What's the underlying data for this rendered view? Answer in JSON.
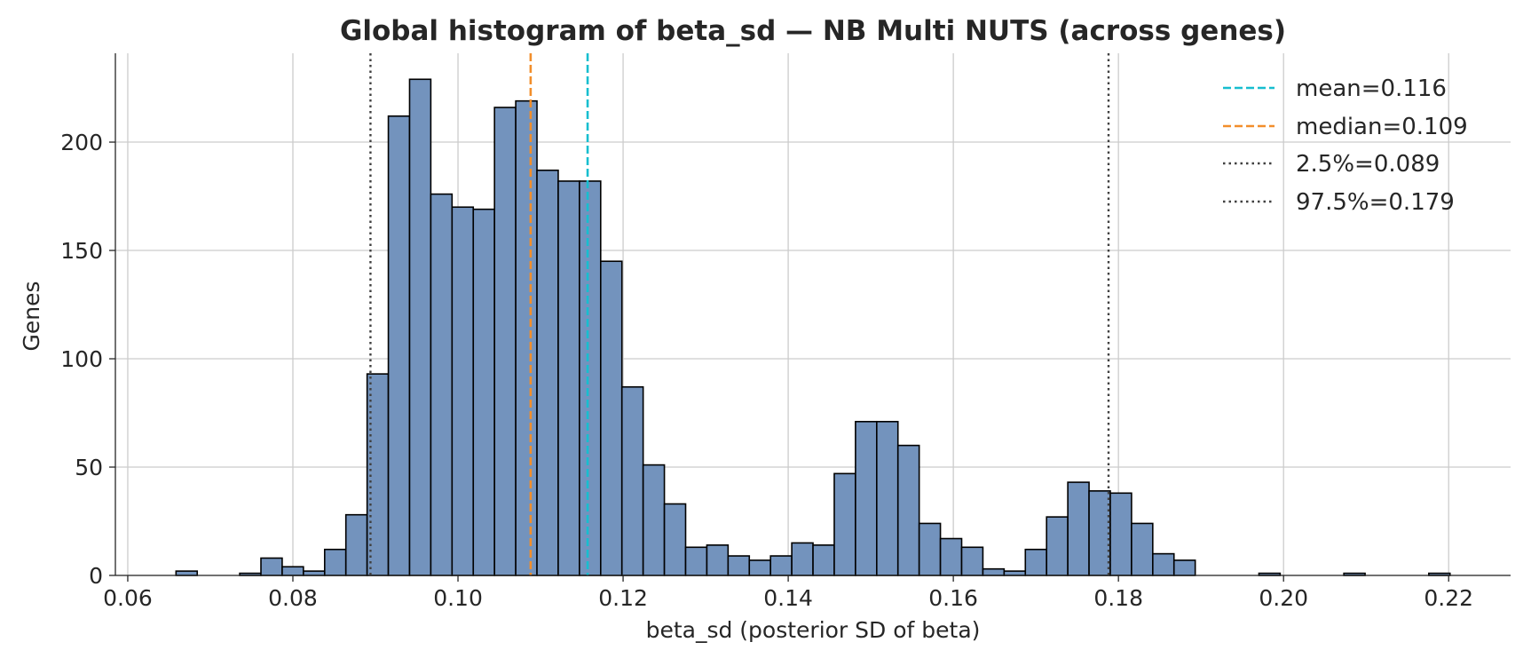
{
  "chart_data": {
    "type": "bar",
    "title": "Global histogram of beta_sd — NB Multi NUTS (across genes)",
    "xlabel": "beta_sd (posterior SD of beta)",
    "ylabel": "Genes",
    "xlim": [
      0.0585,
      0.2275
    ],
    "ylim": [
      0,
      241
    ],
    "xticks": [
      0.06,
      0.08,
      0.1,
      0.12,
      0.14,
      0.16,
      0.18,
      0.2,
      0.22
    ],
    "xtick_labels": [
      "0.06",
      "0.08",
      "0.10",
      "0.12",
      "0.14",
      "0.16",
      "0.18",
      "0.20",
      "0.22"
    ],
    "yticks": [
      0,
      50,
      100,
      150,
      200
    ],
    "ytick_labels": [
      "0",
      "50",
      "100",
      "150",
      "200"
    ],
    "grid": true,
    "legend_position": "top-right",
    "bin_start": 0.0607,
    "bin_width": 0.002572,
    "values": [
      0,
      0,
      2,
      0,
      0,
      1,
      8,
      4,
      2,
      12,
      28,
      93,
      212,
      229,
      176,
      170,
      169,
      216,
      219,
      187,
      182,
      182,
      145,
      87,
      51,
      33,
      13,
      14,
      9,
      7,
      9,
      15,
      14,
      47,
      71,
      71,
      60,
      24,
      17,
      13,
      3,
      2,
      12,
      27,
      43,
      39,
      38,
      24,
      10,
      7,
      0,
      0,
      0,
      1,
      0,
      0,
      0,
      1,
      0,
      0,
      0,
      1
    ],
    "bar_color": "#7393bd",
    "reference_lines": [
      {
        "label": "mean=0.116",
        "x": 0.1157,
        "color": "#17becf",
        "style": "dashed"
      },
      {
        "label": "median=0.109",
        "x": 0.1088,
        "color": "#f28e2b",
        "style": "dashed"
      },
      {
        "label": "2.5%=0.089",
        "x": 0.0894,
        "color": "#404040",
        "style": "dotted"
      },
      {
        "label": "97.5%=0.179",
        "x": 0.1788,
        "color": "#404040",
        "style": "dotted"
      }
    ]
  }
}
